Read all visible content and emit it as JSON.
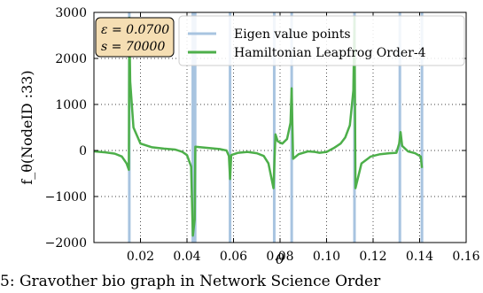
{
  "caption": "5: Gravother bio graph in Network Science Order",
  "chart_data": {
    "type": "line",
    "xlabel": "θ",
    "ylabel": "f_θ(NodeID :33)",
    "xlim": [
      0.0,
      0.16
    ],
    "ylim": [
      -2000,
      3000
    ],
    "xticks": [
      0.02,
      0.04,
      0.06,
      0.08,
      0.1,
      0.12,
      0.14,
      0.16
    ],
    "xtick_labels": [
      "0.02",
      "0.04",
      "0.06",
      "0.08",
      "0.10",
      "0.12",
      "0.14",
      "0.16"
    ],
    "yticks": [
      -2000,
      -1000,
      0,
      1000,
      2000,
      3000
    ],
    "ytick_labels": [
      "−2000",
      "−1000",
      "0",
      "1000",
      "2000",
      "3000"
    ],
    "grid": true,
    "legend_position": "top-right",
    "params_box": {
      "eps_label": "ε = 0.0700",
      "s_label": "s = 70000"
    },
    "eigen_color": "#a8c4e0",
    "line_color": "#4daf4a",
    "series": [
      {
        "name": "Eigen value points",
        "kind": "vlines",
        "x": [
          0.0152,
          0.0425,
          0.0435,
          0.0585,
          0.0775,
          0.085,
          0.112,
          0.1315,
          0.141
        ]
      },
      {
        "name": "Hamiltonian Leapfrog Order-4",
        "kind": "line",
        "points": [
          [
            0.0,
            -20
          ],
          [
            0.005,
            -40
          ],
          [
            0.009,
            -70
          ],
          [
            0.012,
            -130
          ],
          [
            0.014,
            -280
          ],
          [
            0.015,
            -420
          ],
          [
            0.0152,
            2880
          ],
          [
            0.0156,
            1500
          ],
          [
            0.017,
            500
          ],
          [
            0.02,
            150
          ],
          [
            0.025,
            70
          ],
          [
            0.03,
            40
          ],
          [
            0.035,
            20
          ],
          [
            0.038,
            -30
          ],
          [
            0.04,
            -100
          ],
          [
            0.0418,
            -350
          ],
          [
            0.0425,
            -1850
          ],
          [
            0.0433,
            -1500
          ],
          [
            0.0436,
            80
          ],
          [
            0.046,
            70
          ],
          [
            0.05,
            50
          ],
          [
            0.054,
            30
          ],
          [
            0.057,
            0
          ],
          [
            0.058,
            -120
          ],
          [
            0.0585,
            -620
          ],
          [
            0.059,
            -100
          ],
          [
            0.062,
            -50
          ],
          [
            0.066,
            -30
          ],
          [
            0.07,
            -60
          ],
          [
            0.073,
            -120
          ],
          [
            0.075,
            -280
          ],
          [
            0.0772,
            -820
          ],
          [
            0.078,
            350
          ],
          [
            0.079,
            200
          ],
          [
            0.081,
            150
          ],
          [
            0.083,
            250
          ],
          [
            0.0845,
            600
          ],
          [
            0.085,
            1350
          ],
          [
            0.0856,
            -180
          ],
          [
            0.088,
            -80
          ],
          [
            0.092,
            -20
          ],
          [
            0.095,
            -30
          ],
          [
            0.097,
            -50
          ],
          [
            0.1,
            -30
          ],
          [
            0.103,
            50
          ],
          [
            0.106,
            150
          ],
          [
            0.108,
            280
          ],
          [
            0.11,
            550
          ],
          [
            0.1115,
            1300
          ],
          [
            0.112,
            2900
          ],
          [
            0.1124,
            -820
          ],
          [
            0.115,
            -280
          ],
          [
            0.119,
            -130
          ],
          [
            0.123,
            -80
          ],
          [
            0.127,
            -60
          ],
          [
            0.13,
            -50
          ],
          [
            0.1312,
            150
          ],
          [
            0.1318,
            400
          ],
          [
            0.1325,
            100
          ],
          [
            0.135,
            -20
          ],
          [
            0.138,
            -60
          ],
          [
            0.1405,
            -130
          ],
          [
            0.141,
            -380
          ]
        ]
      }
    ]
  }
}
